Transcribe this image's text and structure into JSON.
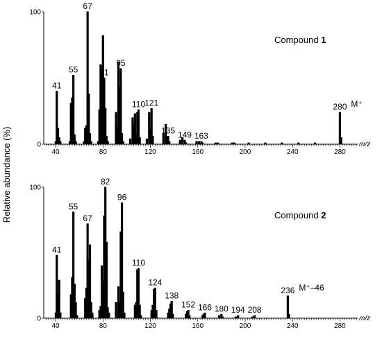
{
  "ylabel": "Relative abundance (%)",
  "chart_data": [
    {
      "type": "bar",
      "title": "Compound 1",
      "title_main": "Compound",
      "title_num": "1",
      "xlabel": "m/z",
      "xlim": [
        30,
        295
      ],
      "ylim": [
        0,
        100
      ],
      "xticks": [
        40,
        80,
        120,
        160,
        200,
        240,
        280
      ],
      "yticks": [
        0,
        100
      ],
      "ion_annotation": {
        "x": 280,
        "text": "M⁺"
      },
      "labeled_peaks": [
        41,
        55,
        67,
        81,
        95,
        110,
        121,
        135,
        149,
        163,
        280
      ],
      "peaks": [
        [
          40.2,
          2
        ],
        [
          41,
          40
        ],
        [
          42,
          12
        ],
        [
          43,
          5
        ],
        [
          44,
          2
        ],
        [
          52,
          2
        ],
        [
          53,
          31
        ],
        [
          54,
          35
        ],
        [
          55,
          52
        ],
        [
          56,
          7
        ],
        [
          57,
          2
        ],
        [
          64,
          2
        ],
        [
          65,
          12
        ],
        [
          66,
          14
        ],
        [
          67,
          100
        ],
        [
          68,
          38
        ],
        [
          69,
          8
        ],
        [
          70,
          2
        ],
        [
          76,
          2
        ],
        [
          77,
          26
        ],
        [
          78,
          60
        ],
        [
          79,
          57
        ],
        [
          80,
          82
        ],
        [
          81,
          50
        ],
        [
          82,
          27
        ],
        [
          83,
          6
        ],
        [
          84,
          2
        ],
        [
          91,
          24
        ],
        [
          92,
          13
        ],
        [
          93,
          62
        ],
        [
          94,
          43
        ],
        [
          95,
          57
        ],
        [
          96,
          8
        ],
        [
          97,
          2
        ],
        [
          103,
          4
        ],
        [
          105,
          20
        ],
        [
          106,
          14
        ],
        [
          107,
          23
        ],
        [
          108,
          7
        ],
        [
          109,
          24
        ],
        [
          110,
          26
        ],
        [
          111,
          5
        ],
        [
          117,
          4
        ],
        [
          119,
          24
        ],
        [
          120,
          11
        ],
        [
          121,
          27
        ],
        [
          122,
          6
        ],
        [
          131,
          8
        ],
        [
          133,
          15
        ],
        [
          134,
          5
        ],
        [
          135,
          6
        ],
        [
          136,
          2
        ],
        [
          145,
          3
        ],
        [
          147,
          5
        ],
        [
          149,
          3
        ],
        [
          150,
          1
        ],
        [
          159,
          2
        ],
        [
          161,
          2
        ],
        [
          163,
          2
        ],
        [
          164,
          1
        ],
        [
          175,
          1
        ],
        [
          177,
          1
        ],
        [
          189,
          1
        ],
        [
          191,
          1
        ],
        [
          203,
          1
        ],
        [
          217,
          1
        ],
        [
          231,
          1
        ],
        [
          245,
          1
        ],
        [
          259,
          1
        ],
        [
          280,
          24
        ],
        [
          281,
          5
        ]
      ]
    },
    {
      "type": "bar",
      "title": "Compound 2",
      "title_main": "Compound",
      "title_num": "2",
      "xlabel": "m/z",
      "xlim": [
        30,
        295
      ],
      "ylim": [
        0,
        100
      ],
      "xticks": [
        40,
        80,
        120,
        160,
        200,
        240,
        280
      ],
      "yticks": [
        0,
        100
      ],
      "ion_annotation": {
        "x": 236,
        "text": "M⁺–46"
      },
      "labeled_peaks": [
        41,
        55,
        67,
        82,
        96,
        110,
        124,
        138,
        152,
        166,
        180,
        194,
        208,
        236
      ],
      "peaks": [
        [
          40.2,
          4
        ],
        [
          41,
          48
        ],
        [
          42,
          18
        ],
        [
          43,
          29
        ],
        [
          44,
          4
        ],
        [
          53,
          18
        ],
        [
          54,
          31
        ],
        [
          55,
          81
        ],
        [
          56,
          26
        ],
        [
          57,
          12
        ],
        [
          58,
          2
        ],
        [
          65,
          15
        ],
        [
          66,
          23
        ],
        [
          67,
          72
        ],
        [
          68,
          44
        ],
        [
          69,
          56
        ],
        [
          70,
          12
        ],
        [
          71,
          4
        ],
        [
          77,
          6
        ],
        [
          78,
          9
        ],
        [
          79,
          40
        ],
        [
          80,
          28
        ],
        [
          81,
          78
        ],
        [
          82,
          100
        ],
        [
          83,
          58
        ],
        [
          84,
          8
        ],
        [
          85,
          4
        ],
        [
          91,
          12
        ],
        [
          93,
          24
        ],
        [
          94,
          12
        ],
        [
          95,
          66
        ],
        [
          96,
          88
        ],
        [
          97,
          20
        ],
        [
          98,
          4
        ],
        [
          107,
          10
        ],
        [
          108,
          12
        ],
        [
          109,
          37
        ],
        [
          110,
          38
        ],
        [
          111,
          10
        ],
        [
          112,
          2
        ],
        [
          121,
          6
        ],
        [
          122,
          10
        ],
        [
          123,
          22
        ],
        [
          124,
          23
        ],
        [
          125,
          6
        ],
        [
          135,
          4
        ],
        [
          136,
          7
        ],
        [
          137,
          11
        ],
        [
          138,
          13
        ],
        [
          139,
          3
        ],
        [
          150,
          3
        ],
        [
          151,
          5
        ],
        [
          152,
          6
        ],
        [
          153,
          2
        ],
        [
          164,
          2
        ],
        [
          165,
          3
        ],
        [
          166,
          4
        ],
        [
          178,
          2
        ],
        [
          180,
          3
        ],
        [
          181,
          1
        ],
        [
          192,
          1
        ],
        [
          194,
          2
        ],
        [
          206,
          1
        ],
        [
          208,
          2
        ],
        [
          236,
          17
        ],
        [
          237,
          3
        ]
      ]
    }
  ]
}
